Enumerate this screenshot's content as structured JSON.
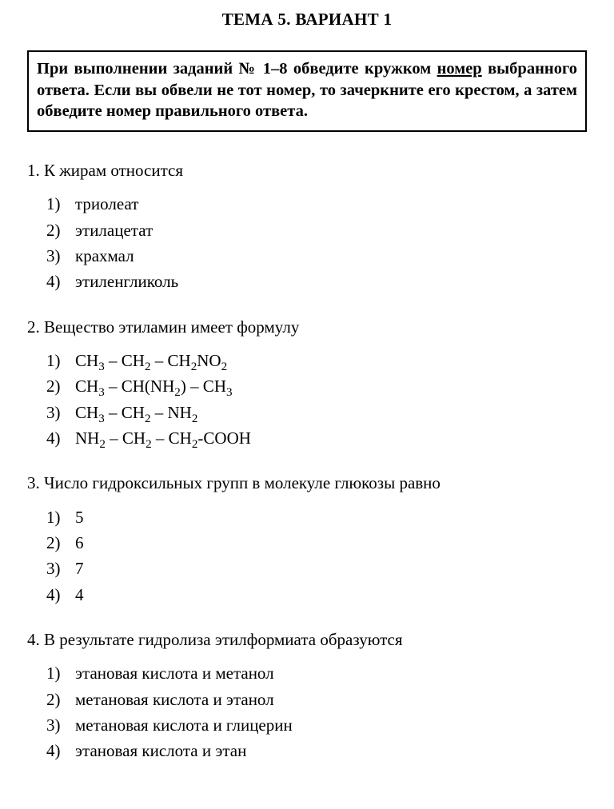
{
  "title": "ТЕМА 5. ВАРИАНТ 1",
  "instruction": {
    "part1": "При выполнении заданий № 1–8 обведите кружком ",
    "underlined": "номер",
    "part2": " выбранного ответа. Если вы обвели не тот номер, то зачеркни­те его крестом, а затем обведите номер правильного ответа."
  },
  "questions": [
    {
      "num": "1.",
      "stem": "К жирам относится",
      "options": [
        {
          "n": "1)",
          "text": "триолеат"
        },
        {
          "n": "2)",
          "text": "этилацетат"
        },
        {
          "n": "3)",
          "text": "крахмал"
        },
        {
          "n": "4)",
          "text": "этиленгликоль"
        }
      ]
    },
    {
      "num": "2.",
      "stem": "Вещество этиламин имеет формулу",
      "options": [
        {
          "n": "1)",
          "html": "CH<sub>3</sub> – CH<sub>2</sub> – CH<sub>2</sub>NO<sub>2</sub>"
        },
        {
          "n": "2)",
          "html": "CH<sub>3</sub> – CH(NH<sub>2</sub>) – CH<sub>3</sub>"
        },
        {
          "n": "3)",
          "html": "CH<sub>3</sub> – CH<sub>2</sub> – NH<sub>2</sub>"
        },
        {
          "n": "4)",
          "html": "NH<sub>2</sub> – CH<sub>2</sub> – CH<sub>2</sub>-COOH"
        }
      ]
    },
    {
      "num": "3.",
      "stem": "Число гидроксильных групп в молекуле глюкозы равно",
      "options": [
        {
          "n": "1)",
          "text": "5"
        },
        {
          "n": "2)",
          "text": "6"
        },
        {
          "n": "3)",
          "text": "7"
        },
        {
          "n": "4)",
          "text": "4"
        }
      ]
    },
    {
      "num": "4.",
      "stem": "В результате гидролиза этилформиата образуются",
      "options": [
        {
          "n": "1)",
          "text": "этановая кислота и метанол"
        },
        {
          "n": "2)",
          "text": " метановая кислота и этанол"
        },
        {
          "n": "3)",
          "text": "метановая кислота и глицерин"
        },
        {
          "n": "4)",
          "text": "этановая кислота и этан"
        }
      ]
    }
  ]
}
